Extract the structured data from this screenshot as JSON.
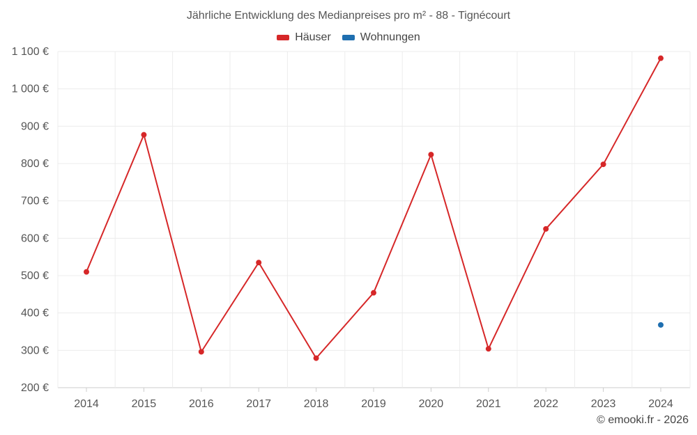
{
  "chart_data": {
    "type": "line",
    "title": "Jährliche Entwicklung des Medianpreises pro m² - 88 - Tignécourt",
    "xlabel": "",
    "ylabel": "",
    "categories": [
      "2014",
      "2015",
      "2016",
      "2017",
      "2018",
      "2019",
      "2020",
      "2021",
      "2022",
      "2023",
      "2024"
    ],
    "ylim": [
      200,
      1100
    ],
    "yticks": [
      200,
      300,
      400,
      500,
      600,
      700,
      800,
      900,
      1000,
      1100
    ],
    "ytick_labels": [
      "200 €",
      "300 €",
      "400 €",
      "500 €",
      "600 €",
      "700 €",
      "800 €",
      "900 €",
      "1 000 €",
      "1 100 €"
    ],
    "grid": true,
    "legend_position": "top-center",
    "series": [
      {
        "name": "Häuser",
        "color": "#d62728",
        "values": [
          510,
          877,
          296,
          535,
          279,
          454,
          824,
          304,
          625,
          798,
          1082
        ]
      },
      {
        "name": "Wohnungen",
        "color": "#1f6fb0",
        "values": [
          null,
          null,
          null,
          null,
          null,
          null,
          null,
          null,
          null,
          null,
          368
        ]
      }
    ]
  },
  "credit": "© emooki.fr - 2026"
}
